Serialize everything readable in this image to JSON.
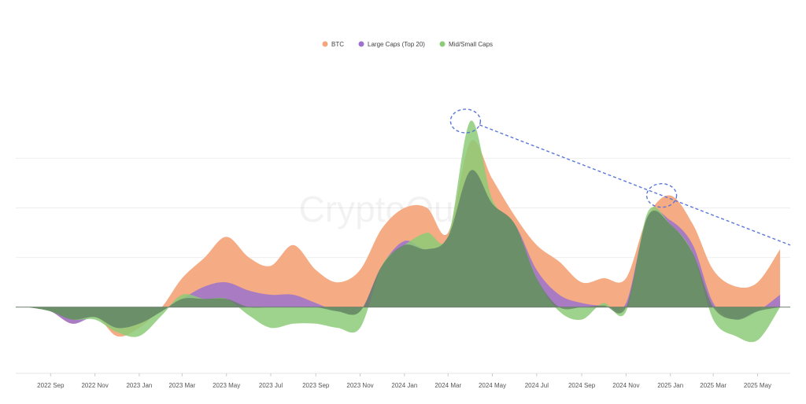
{
  "chart_data": {
    "type": "area",
    "title": "",
    "xlabel": "",
    "ylabel": "",
    "watermark": "CryptoQuant",
    "legend": {
      "position": "top-center"
    },
    "x": [
      "2022-08-01",
      "2022-09-01",
      "2022-10-01",
      "2022-11-01",
      "2022-12-01",
      "2023-01-01",
      "2023-02-01",
      "2023-03-01",
      "2023-04-01",
      "2023-05-01",
      "2023-06-01",
      "2023-07-01",
      "2023-08-01",
      "2023-09-01",
      "2023-10-01",
      "2023-11-01",
      "2023-12-01",
      "2024-01-01",
      "2024-02-01",
      "2024-03-01",
      "2024-04-01",
      "2024-05-01",
      "2024-06-01",
      "2024-07-01",
      "2024-08-01",
      "2024-09-01",
      "2024-10-01",
      "2024-11-01",
      "2024-12-01",
      "2025-01-01",
      "2025-02-01",
      "2025-03-01",
      "2025-04-01",
      "2025-05-01",
      "2025-06-01"
    ],
    "xlim": [
      "2022-07-15",
      "2025-06-15"
    ],
    "ylim": [
      -8,
      30
    ],
    "xticks": [
      {
        "date": "2022-09-01",
        "label": "2022 Sep"
      },
      {
        "date": "2022-11-01",
        "label": "2022 Nov"
      },
      {
        "date": "2023-01-01",
        "label": "2023 Jan"
      },
      {
        "date": "2023-03-01",
        "label": "2023 Mar"
      },
      {
        "date": "2023-05-01",
        "label": "2023 May"
      },
      {
        "date": "2023-07-01",
        "label": "2023 Jul"
      },
      {
        "date": "2023-09-01",
        "label": "2023 Sep"
      },
      {
        "date": "2023-11-01",
        "label": "2023 Nov"
      },
      {
        "date": "2024-01-01",
        "label": "2024 Jan"
      },
      {
        "date": "2024-03-01",
        "label": "2024 Mar"
      },
      {
        "date": "2024-05-01",
        "label": "2024 May"
      },
      {
        "date": "2024-07-01",
        "label": "2024 Jul"
      },
      {
        "date": "2024-09-01",
        "label": "2024 Sep"
      },
      {
        "date": "2024-11-01",
        "label": "2024 Nov"
      },
      {
        "date": "2025-01-01",
        "label": "2025 Jan"
      },
      {
        "date": "2025-03-01",
        "label": "2025 Mar"
      },
      {
        "date": "2025-05-01",
        "label": "2025 May"
      }
    ],
    "gridlines": [
      0,
      6,
      12,
      18
    ],
    "series": [
      {
        "name": "BTC",
        "color": "#f4a77c",
        "values": [
          0,
          -0.5,
          -2,
          -1,
          -3.5,
          -2.5,
          0,
          3.5,
          6,
          8.5,
          6,
          5,
          7.5,
          4.5,
          3,
          4.5,
          9.5,
          12,
          12,
          9,
          20,
          15.5,
          11,
          7.5,
          5.5,
          3,
          3.5,
          3.5,
          11,
          13.5,
          10,
          4.5,
          2.5,
          3,
          7
        ]
      },
      {
        "name": "Large Caps (Top 20)",
        "color": "#9b72cf",
        "values": [
          0,
          -0.5,
          -2,
          -1.2,
          -2.5,
          -2,
          -0.5,
          1,
          2.5,
          3,
          2,
          1.5,
          1.5,
          0.5,
          -0.5,
          -0.5,
          5,
          8,
          7,
          8.5,
          16.5,
          12.5,
          10,
          4.5,
          1.5,
          0.5,
          0.2,
          0.5,
          11,
          10.5,
          7.5,
          0.5,
          -1.5,
          -0.5,
          1.5
        ]
      },
      {
        "name": "Mid/Small Caps",
        "color": "#8ccb78",
        "values": [
          0,
          -0.5,
          -1.5,
          -1.5,
          -3,
          -3.5,
          -1,
          1.5,
          1,
          1,
          -1,
          -2.5,
          -2,
          -2,
          -2.5,
          -2.5,
          5,
          7.5,
          9,
          8.5,
          22.5,
          13,
          10,
          3.5,
          -0.5,
          -1.5,
          0.5,
          -0.5,
          11.5,
          10,
          6.5,
          -1.5,
          -3.5,
          -4,
          0
        ]
      }
    ],
    "annotations": [
      {
        "type": "circle",
        "at": "Mid/Small Caps peak",
        "date": "2024-03-25",
        "value": 22.5
      },
      {
        "type": "circle",
        "at": "BTC peak",
        "date": "2024-12-20",
        "value": 13.5
      },
      {
        "type": "dashed-trendline",
        "from": {
          "date": "2024-03-25",
          "value": 22.5
        },
        "to": {
          "date": "2025-06-15",
          "value": 7.5
        }
      }
    ]
  }
}
